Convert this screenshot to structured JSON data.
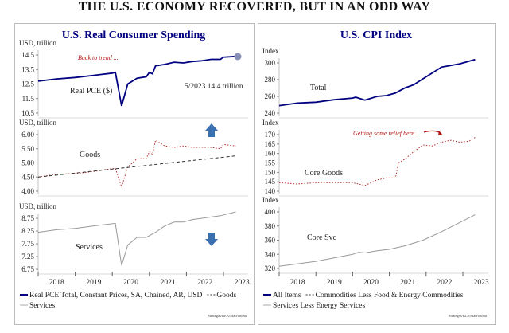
{
  "title": "THE U.S. ECONOMY RECOVERED, BUT IN AN ODD WAY",
  "chart_data": [
    {
      "type": "line",
      "title": "U.S. Real Consumer Spending",
      "x_ticks": [
        "2018",
        "2019",
        "2020",
        "2021",
        "2022",
        "2023"
      ],
      "legend": [
        "Real PCE Total, Constant Prices, SA, Chained, AR, USD",
        "Goods",
        "Services"
      ],
      "source": "Strategas/BEA/Macrobond",
      "subplots": [
        {
          "ylabel": "USD, trillion",
          "yticks": [
            "14.5",
            "13.5",
            "12.5",
            "11.5",
            "10.5"
          ],
          "ylim": [
            10.5,
            14.5
          ],
          "label": "Real PCE ($)",
          "annotations": [
            "Back to trend ...",
            "5/2023 14.4 trillion"
          ],
          "series": [
            {
              "name": "Real PCE Total, Constant Prices, SA, Chained, AR, USD",
              "color": "#000080",
              "style": "solid",
              "x": [
                "2018-01",
                "2018-07",
                "2019-01",
                "2019-07",
                "2020-01",
                "2020-02",
                "2020-04",
                "2020-06",
                "2020-09",
                "2020-12",
                "2021-01",
                "2021-02",
                "2021-03",
                "2021-06",
                "2021-09",
                "2021-12",
                "2022-03",
                "2022-06",
                "2022-09",
                "2022-12",
                "2023-01",
                "2023-05"
              ],
              "y": [
                12.7,
                12.85,
                12.95,
                13.1,
                13.25,
                13.3,
                11.0,
                12.5,
                12.9,
                13.0,
                13.3,
                13.2,
                13.75,
                13.85,
                14.0,
                13.95,
                14.05,
                14.1,
                14.2,
                14.2,
                14.35,
                14.4
              ]
            }
          ]
        },
        {
          "ylabel": "USD, trillion",
          "yticks": [
            "6.00",
            "5.50",
            "5.00",
            "4.50",
            "4.00"
          ],
          "ylim": [
            4.0,
            6.0
          ],
          "label": "Goods",
          "arrow": "up",
          "series": [
            {
              "name": "Goods",
              "color": "#b03030",
              "style": "dotted",
              "x": [
                "2018-01",
                "2018-07",
                "2019-01",
                "2019-07",
                "2020-01",
                "2020-02",
                "2020-04",
                "2020-06",
                "2020-09",
                "2020-12",
                "2021-01",
                "2021-02",
                "2021-03",
                "2021-06",
                "2021-09",
                "2021-12",
                "2022-03",
                "2022-06",
                "2022-09",
                "2022-12",
                "2023-01",
                "2023-05"
              ],
              "y": [
                4.5,
                4.6,
                4.62,
                4.7,
                4.8,
                4.8,
                4.15,
                4.85,
                5.15,
                5.15,
                5.4,
                5.3,
                5.8,
                5.6,
                5.55,
                5.6,
                5.55,
                5.55,
                5.55,
                5.5,
                5.65,
                5.6
              ]
            },
            {
              "color": "#333333",
              "style": "dashed",
              "x": [
                "2018-01",
                "2023-05"
              ],
              "y": [
                4.5,
                5.25
              ]
            }
          ]
        },
        {
          "ylabel": "USD, trillion",
          "yticks": [
            "8.75",
            "8.25",
            "7.75",
            "7.25",
            "6.75"
          ],
          "ylim": [
            6.5,
            9.25
          ],
          "label": "Services",
          "arrow": "down",
          "series": [
            {
              "name": "Services",
              "color": "#999999",
              "style": "solid",
              "x": [
                "2018-01",
                "2018-07",
                "2019-01",
                "2019-07",
                "2020-02",
                "2020-04",
                "2020-06",
                "2020-09",
                "2020-12",
                "2021-03",
                "2021-06",
                "2021-09",
                "2021-12",
                "2022-03",
                "2022-06",
                "2022-09",
                "2022-12",
                "2023-05"
              ],
              "y": [
                8.2,
                8.3,
                8.35,
                8.45,
                8.55,
                6.9,
                7.7,
                8.0,
                8.0,
                8.2,
                8.45,
                8.6,
                8.6,
                8.7,
                8.75,
                8.8,
                8.85,
                9.0
              ]
            }
          ]
        }
      ]
    },
    {
      "type": "line",
      "title": "U.S. CPI Index",
      "x_ticks": [
        "2018",
        "2019",
        "2020",
        "2021",
        "2022",
        "2023"
      ],
      "legend": [
        "All Items",
        "Commodities Less Food & Energy Commodities",
        "Services Less Energy Services"
      ],
      "source": "Strategas/BLS/Macrobond",
      "subplots": [
        {
          "ylabel": "Index",
          "yticks": [
            "300",
            "280",
            "260",
            "240"
          ],
          "ylim": [
            240,
            310
          ],
          "label": "Total",
          "series": [
            {
              "name": "All Items",
              "color": "#000080",
              "style": "solid",
              "x": [
                "2018-01",
                "2018-07",
                "2019-01",
                "2019-07",
                "2020-01",
                "2020-02",
                "2020-05",
                "2020-09",
                "2020-12",
                "2021-03",
                "2021-06",
                "2021-09",
                "2021-12",
                "2022-03",
                "2022-06",
                "2022-09",
                "2022-12",
                "2023-03",
                "2023-05"
              ],
              "y": [
                249,
                252,
                253,
                256,
                258,
                259,
                255.5,
                260,
                261,
                264,
                270,
                274,
                281,
                288,
                295,
                297,
                299,
                302,
                304
              ]
            }
          ]
        },
        {
          "ylabel": "Index",
          "yticks": [
            "170",
            "165",
            "160",
            "155",
            "150",
            "145",
            "140"
          ],
          "ylim": [
            140,
            172
          ],
          "label": "Core Goods",
          "annotations": [
            "Getting some relief here..."
          ],
          "series": [
            {
              "name": "Commodities Less Food & Energy Commodities",
              "color": "#b03030",
              "style": "dotted",
              "x": [
                "2018-01",
                "2018-07",
                "2019-01",
                "2019-07",
                "2020-01",
                "2020-05",
                "2020-09",
                "2020-12",
                "2021-03",
                "2021-04",
                "2021-06",
                "2021-09",
                "2021-12",
                "2022-03",
                "2022-06",
                "2022-09",
                "2022-12",
                "2023-03",
                "2023-05"
              ],
              "y": [
                144.5,
                143.8,
                144.5,
                144.5,
                144.5,
                143,
                146,
                147,
                147,
                155,
                157,
                161,
                164.5,
                164,
                166,
                167,
                166,
                166.5,
                168.5
              ]
            }
          ]
        },
        {
          "ylabel": "Index",
          "yticks": [
            "400",
            "380",
            "360",
            "340",
            "320"
          ],
          "ylim": [
            316,
            406
          ],
          "label": "Core Svc",
          "series": [
            {
              "name": "Services Less Energy Services",
              "color": "#999999",
              "style": "solid",
              "x": [
                "2018-01",
                "2019-01",
                "2020-01",
                "2020-03",
                "2020-05",
                "2020-09",
                "2021-01",
                "2021-06",
                "2021-12",
                "2022-06",
                "2022-12",
                "2023-05"
              ],
              "y": [
                323,
                330,
                340,
                343,
                342,
                345,
                347,
                352,
                360,
                372,
                385,
                396
              ]
            }
          ]
        }
      ]
    }
  ],
  "colors": {
    "arrow": "#3a6fb0",
    "annotation": "#b01818"
  }
}
